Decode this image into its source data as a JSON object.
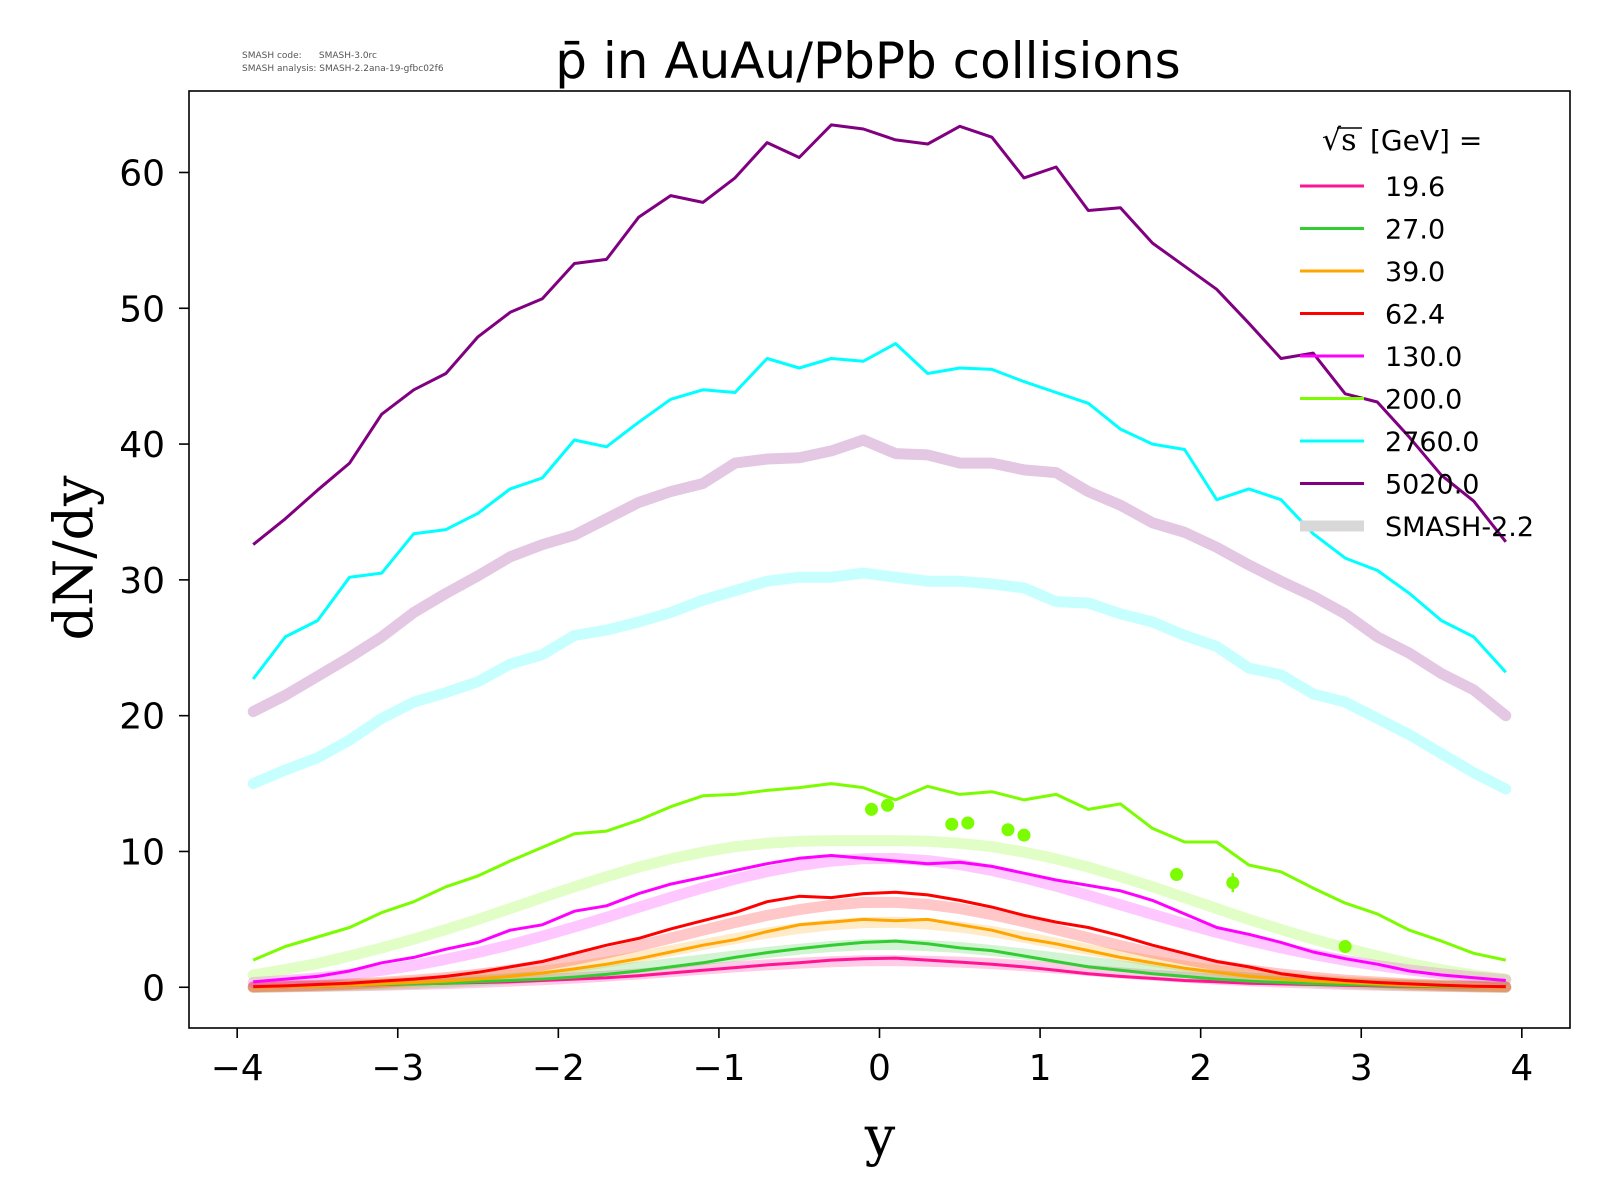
{
  "meta": {
    "code_line": "SMASH code:      SMASH-3.0rc",
    "analysis_line": "SMASH analysis: SMASH-2.2ana-19-gfbc02f6"
  },
  "chart_data": {
    "type": "line",
    "title": "p̄ in AuAu/PbPb collisions",
    "xlabel": "y",
    "ylabel": "dN/dy",
    "xlim": [
      -4.3,
      4.3
    ],
    "ylim": [
      -3,
      66
    ],
    "xticks": [
      "−4",
      "−3",
      "−2",
      "−1",
      "0",
      "1",
      "2",
      "3",
      "4"
    ],
    "yticks": [
      "0",
      "10",
      "20",
      "30",
      "40",
      "50",
      "60"
    ],
    "grid": false,
    "legend_position": "top-right",
    "legend_title": "[GeV] =",
    "legend_title_symbol": "√s",
    "x": [
      -3.9,
      -3.7,
      -3.5,
      -3.3,
      -3.1,
      -2.9,
      -2.7,
      -2.5,
      -2.3,
      -2.1,
      -1.9,
      -1.7,
      -1.5,
      -1.3,
      -1.1,
      -0.9,
      -0.7,
      -0.5,
      -0.3,
      -0.1,
      0.1,
      0.3,
      0.5,
      0.7,
      0.9,
      1.1,
      1.3,
      1.5,
      1.7,
      1.9,
      2.1,
      2.3,
      2.5,
      2.7,
      2.9,
      3.1,
      3.3,
      3.5,
      3.7,
      3.9
    ],
    "series": [
      {
        "name": "19.6",
        "color": "#ff1493",
        "values": [
          0.0,
          0.05,
          0.1,
          0.15,
          0.2,
          0.25,
          0.3,
          0.35,
          0.4,
          0.5,
          0.6,
          0.7,
          0.85,
          1.05,
          1.25,
          1.45,
          1.65,
          1.8,
          2.0,
          2.1,
          2.15,
          2.0,
          1.85,
          1.7,
          1.5,
          1.25,
          1.0,
          0.8,
          0.65,
          0.5,
          0.4,
          0.3,
          0.25,
          0.2,
          0.15,
          0.1,
          0.08,
          0.05,
          0.03,
          0.0
        ]
      },
      {
        "name": "27.0",
        "color": "#32cd32",
        "values": [
          0.0,
          0.05,
          0.1,
          0.15,
          0.2,
          0.25,
          0.3,
          0.4,
          0.5,
          0.6,
          0.75,
          0.95,
          1.2,
          1.5,
          1.8,
          2.2,
          2.55,
          2.85,
          3.1,
          3.3,
          3.4,
          3.2,
          2.9,
          2.7,
          2.3,
          1.9,
          1.5,
          1.25,
          1.0,
          0.8,
          0.6,
          0.45,
          0.35,
          0.25,
          0.2,
          0.15,
          0.1,
          0.05,
          0.03,
          0.0
        ]
      },
      {
        "name": "39.0",
        "color": "#ffa500",
        "values": [
          0.0,
          0.05,
          0.1,
          0.15,
          0.25,
          0.35,
          0.45,
          0.6,
          0.8,
          1.05,
          1.35,
          1.7,
          2.1,
          2.6,
          3.1,
          3.5,
          4.1,
          4.6,
          4.8,
          5.0,
          4.9,
          5.0,
          4.6,
          4.2,
          3.6,
          3.2,
          2.7,
          2.2,
          1.8,
          1.4,
          1.1,
          0.8,
          0.6,
          0.45,
          0.35,
          0.25,
          0.15,
          0.1,
          0.05,
          0.0
        ]
      },
      {
        "name": "62.4",
        "color": "#ff0000",
        "values": [
          0.05,
          0.1,
          0.2,
          0.3,
          0.45,
          0.6,
          0.8,
          1.1,
          1.5,
          1.9,
          2.5,
          3.1,
          3.6,
          4.3,
          4.9,
          5.5,
          6.3,
          6.7,
          6.6,
          6.9,
          7.0,
          6.8,
          6.4,
          5.9,
          5.3,
          4.8,
          4.4,
          3.8,
          3.1,
          2.5,
          1.9,
          1.5,
          1.0,
          0.7,
          0.5,
          0.35,
          0.25,
          0.15,
          0.08,
          0.05
        ]
      },
      {
        "name": "130.0",
        "color": "#ff00ff",
        "values": [
          0.4,
          0.6,
          0.8,
          1.2,
          1.8,
          2.2,
          2.8,
          3.3,
          4.2,
          4.6,
          5.6,
          6.0,
          6.9,
          7.6,
          8.1,
          8.6,
          9.1,
          9.5,
          9.7,
          9.5,
          9.3,
          9.1,
          9.2,
          8.9,
          8.4,
          7.9,
          7.5,
          7.1,
          6.4,
          5.4,
          4.4,
          3.9,
          3.3,
          2.6,
          2.1,
          1.7,
          1.2,
          0.9,
          0.7,
          0.5
        ]
      },
      {
        "name": "200.0",
        "color": "#7cfc00",
        "values": [
          2.0,
          3.0,
          3.7,
          4.4,
          5.5,
          6.3,
          7.4,
          8.2,
          9.3,
          10.3,
          11.3,
          11.5,
          12.3,
          13.3,
          14.1,
          14.2,
          14.5,
          14.7,
          15.0,
          14.7,
          13.8,
          14.8,
          14.2,
          14.4,
          13.8,
          14.2,
          13.1,
          13.5,
          11.7,
          10.7,
          10.7,
          9.0,
          8.5,
          7.3,
          6.2,
          5.4,
          4.2,
          3.4,
          2.5,
          2.0
        ]
      },
      {
        "name": "2760.0",
        "color": "#00ffff",
        "values": [
          22.7,
          25.8,
          27.0,
          30.2,
          30.5,
          33.4,
          33.7,
          34.9,
          36.7,
          37.5,
          40.3,
          39.8,
          41.6,
          43.3,
          44.0,
          43.8,
          46.3,
          45.6,
          46.3,
          46.1,
          47.4,
          45.2,
          45.6,
          45.5,
          44.6,
          43.8,
          43.0,
          41.1,
          40.0,
          39.6,
          35.9,
          36.7,
          35.9,
          33.4,
          31.6,
          30.7,
          29.0,
          27.0,
          25.8,
          23.2
        ]
      },
      {
        "name": "5020.0",
        "color": "#800080",
        "values": [
          32.6,
          34.5,
          36.6,
          38.6,
          42.2,
          44.0,
          45.2,
          47.9,
          49.7,
          50.7,
          53.3,
          53.6,
          56.7,
          58.3,
          57.8,
          59.6,
          62.2,
          61.1,
          63.5,
          63.2,
          62.4,
          62.1,
          63.4,
          62.6,
          59.6,
          60.4,
          57.2,
          57.4,
          54.8,
          53.1,
          51.4,
          48.9,
          46.3,
          46.7,
          43.7,
          43.1,
          40.5,
          37.7,
          35.8,
          32.8
        ]
      }
    ],
    "smash_reference": {
      "name": "SMASH-2.2",
      "color": "#d8d8d8",
      "series": [
        {
          "name": "19.6",
          "color": "#ff1493",
          "values": [
            0.0,
            0.03,
            0.06,
            0.1,
            0.15,
            0.2,
            0.27,
            0.35,
            0.45,
            0.55,
            0.68,
            0.82,
            0.98,
            1.15,
            1.33,
            1.5,
            1.65,
            1.78,
            1.88,
            1.95,
            1.96,
            1.92,
            1.85,
            1.74,
            1.59,
            1.42,
            1.24,
            1.06,
            0.89,
            0.74,
            0.6,
            0.48,
            0.38,
            0.29,
            0.21,
            0.15,
            0.1,
            0.06,
            0.03,
            0.0
          ]
        },
        {
          "name": "27.0",
          "color": "#32cd32",
          "values": [
            0.0,
            0.05,
            0.09,
            0.14,
            0.2,
            0.28,
            0.37,
            0.49,
            0.63,
            0.8,
            1.0,
            1.22,
            1.47,
            1.74,
            2.02,
            2.3,
            2.56,
            2.8,
            3.0,
            3.13,
            3.15,
            3.07,
            2.93,
            2.71,
            2.45,
            2.16,
            1.86,
            1.57,
            1.31,
            1.07,
            0.86,
            0.68,
            0.53,
            0.4,
            0.3,
            0.21,
            0.14,
            0.09,
            0.04,
            0.0
          ]
        },
        {
          "name": "39.0",
          "color": "#ffa500",
          "values": [
            0.0,
            0.06,
            0.11,
            0.18,
            0.27,
            0.38,
            0.52,
            0.7,
            0.92,
            1.18,
            1.49,
            1.85,
            2.25,
            2.69,
            3.14,
            3.58,
            3.99,
            4.34,
            4.6,
            4.76,
            4.78,
            4.66,
            4.43,
            4.1,
            3.69,
            3.24,
            2.78,
            2.34,
            1.93,
            1.56,
            1.24,
            0.97,
            0.74,
            0.55,
            0.4,
            0.28,
            0.18,
            0.11,
            0.05,
            0.0
          ]
        },
        {
          "name": "62.4",
          "color": "#ff0000",
          "values": [
            0.05,
            0.09,
            0.15,
            0.24,
            0.36,
            0.51,
            0.71,
            0.96,
            1.26,
            1.62,
            2.04,
            2.52,
            3.05,
            3.62,
            4.2,
            4.77,
            5.29,
            5.72,
            6.04,
            6.24,
            6.25,
            6.1,
            5.79,
            5.35,
            4.83,
            4.24,
            3.65,
            3.07,
            2.53,
            2.05,
            1.63,
            1.27,
            0.98,
            0.73,
            0.53,
            0.38,
            0.25,
            0.16,
            0.09,
            0.05
          ]
        },
        {
          "name": "130.0",
          "color": "#ff00ff",
          "values": [
            0.35,
            0.5,
            0.7,
            0.95,
            1.25,
            1.62,
            2.06,
            2.56,
            3.13,
            3.76,
            4.44,
            5.15,
            5.89,
            6.62,
            7.32,
            7.96,
            8.52,
            8.97,
            9.29,
            9.47,
            9.48,
            9.33,
            9.03,
            8.6,
            8.06,
            7.44,
            6.77,
            6.07,
            5.37,
            4.69,
            4.04,
            3.44,
            2.9,
            2.41,
            1.98,
            1.6,
            1.28,
            1.0,
            0.76,
            0.56
          ]
        },
        {
          "name": "200.0",
          "color": "#7cfc00",
          "values": [
            0.9,
            1.3,
            1.75,
            2.3,
            2.9,
            3.55,
            4.25,
            5.0,
            5.8,
            6.6,
            7.4,
            8.15,
            8.85,
            9.45,
            9.95,
            10.35,
            10.6,
            10.75,
            10.8,
            10.8,
            10.8,
            10.75,
            10.6,
            10.35,
            9.95,
            9.45,
            8.85,
            8.15,
            7.4,
            6.6,
            5.8,
            5.0,
            4.25,
            3.55,
            2.9,
            2.3,
            1.75,
            1.3,
            0.9,
            0.6
          ]
        },
        {
          "name": "2760.0",
          "color": "#00ffff",
          "values": [
            15.0,
            16.0,
            16.9,
            18.2,
            19.8,
            21.0,
            21.7,
            22.5,
            23.8,
            24.5,
            25.9,
            26.3,
            26.9,
            27.6,
            28.5,
            29.2,
            29.9,
            30.2,
            30.2,
            30.5,
            30.2,
            29.9,
            29.9,
            29.7,
            29.4,
            28.4,
            28.3,
            27.5,
            26.9,
            25.9,
            25.1,
            23.5,
            23.0,
            21.6,
            21.0,
            19.8,
            18.6,
            17.2,
            15.8,
            14.6
          ]
        },
        {
          "name": "5020.0",
          "color": "#800080",
          "values": [
            20.3,
            21.5,
            22.9,
            24.3,
            25.8,
            27.6,
            29.0,
            30.3,
            31.7,
            32.6,
            33.3,
            34.5,
            35.7,
            36.5,
            37.1,
            38.6,
            38.9,
            39.0,
            39.5,
            40.3,
            39.3,
            39.2,
            38.6,
            38.6,
            38.1,
            37.9,
            36.5,
            35.5,
            34.2,
            33.5,
            32.4,
            31.1,
            29.9,
            28.8,
            27.5,
            25.8,
            24.6,
            23.1,
            21.9,
            20.0
          ]
        }
      ]
    },
    "experimental_data": {
      "series_name": "200.0",
      "color": "#7cfc00",
      "points": [
        {
          "x": -0.05,
          "y": 13.1,
          "err": 0.2
        },
        {
          "x": 0.05,
          "y": 13.4,
          "err": 0.2
        },
        {
          "x": 0.45,
          "y": 12.0,
          "err": 0.2
        },
        {
          "x": 0.55,
          "y": 12.1,
          "err": 0.2
        },
        {
          "x": 0.8,
          "y": 11.6,
          "err": 0.2
        },
        {
          "x": 0.9,
          "y": 11.2,
          "err": 0.2
        },
        {
          "x": 1.85,
          "y": 8.3,
          "err": 0.2
        },
        {
          "x": 2.2,
          "y": 7.7,
          "err": 0.7
        },
        {
          "x": 2.9,
          "y": 3.0,
          "err": 0.2
        }
      ]
    }
  }
}
